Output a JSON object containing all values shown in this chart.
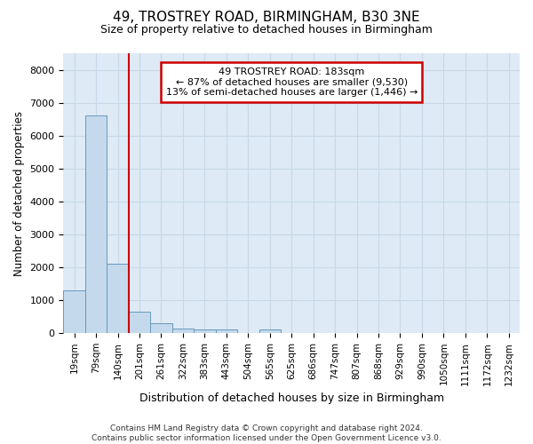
{
  "title": "49, TROSTREY ROAD, BIRMINGHAM, B30 3NE",
  "subtitle": "Size of property relative to detached houses in Birmingham",
  "xlabel": "Distribution of detached houses by size in Birmingham",
  "ylabel": "Number of detached properties",
  "annotation_line1": "49 TROSTREY ROAD: 183sqm",
  "annotation_line2": "← 87% of detached houses are smaller (9,530)",
  "annotation_line3": "13% of semi-detached houses are larger (1,446) →",
  "footer_line1": "Contains HM Land Registry data © Crown copyright and database right 2024.",
  "footer_line2": "Contains public sector information licensed under the Open Government Licence v3.0.",
  "bin_labels": [
    "19sqm",
    "79sqm",
    "140sqm",
    "201sqm",
    "261sqm",
    "322sqm",
    "383sqm",
    "443sqm",
    "504sqm",
    "565sqm",
    "625sqm",
    "686sqm",
    "747sqm",
    "807sqm",
    "868sqm",
    "929sqm",
    "990sqm",
    "1050sqm",
    "1111sqm",
    "1172sqm",
    "1232sqm"
  ],
  "bar_values": [
    1300,
    6600,
    2100,
    650,
    300,
    150,
    100,
    100,
    0,
    100,
    0,
    0,
    0,
    0,
    0,
    0,
    0,
    0,
    0,
    0,
    0
  ],
  "bar_color": "#c5d9ed",
  "bar_edge_color": "#6699bb",
  "vline_color": "#cc0000",
  "annotation_box_color": "#cc0000",
  "ylim": [
    0,
    8500
  ],
  "yticks": [
    0,
    1000,
    2000,
    3000,
    4000,
    5000,
    6000,
    7000,
    8000
  ],
  "grid_color": "#c8d8e8",
  "background_color": "#deeaf5"
}
